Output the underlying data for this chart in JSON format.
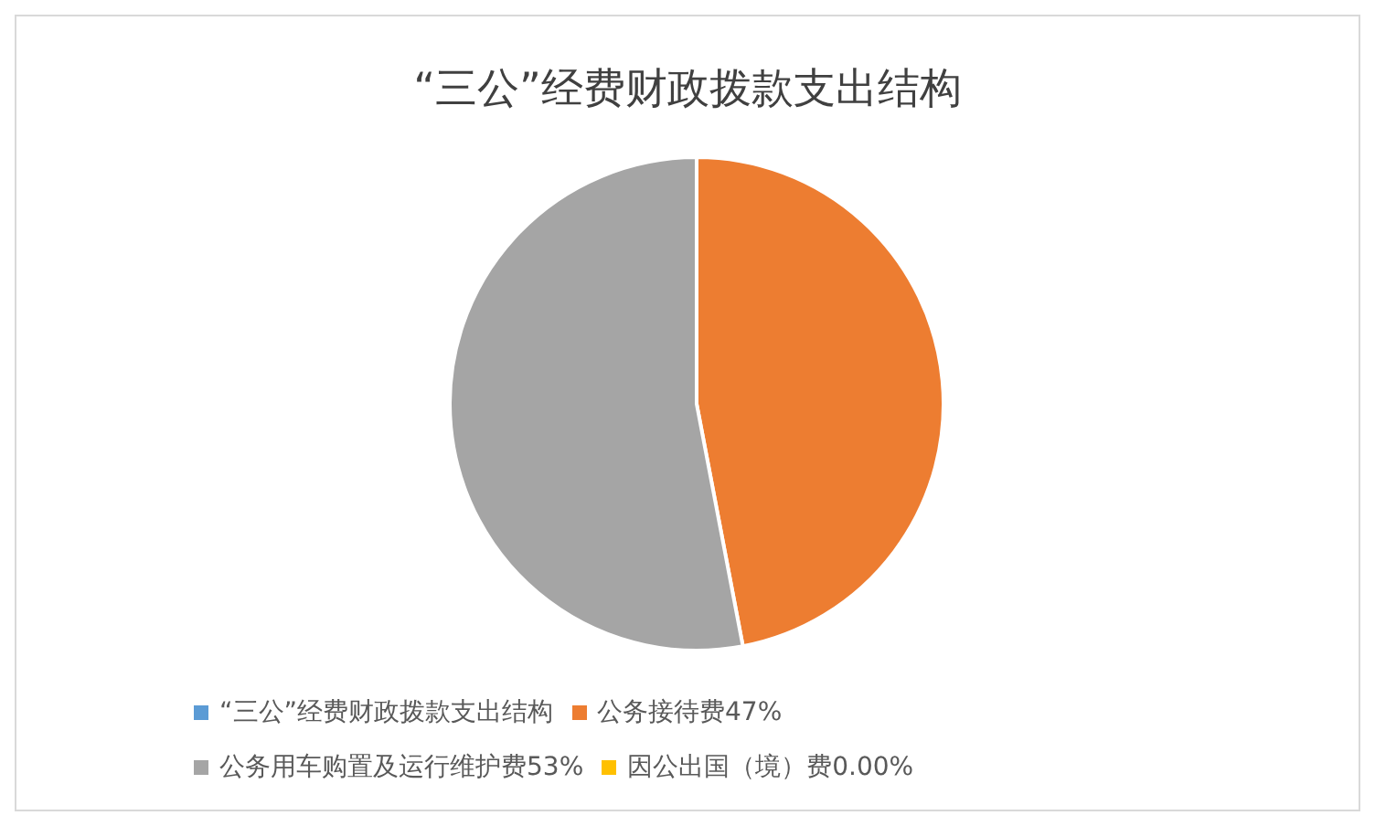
{
  "chart_data": {
    "type": "pie",
    "title": "“三公”经费财政拨款支出结构",
    "categories": [
      "“三公”经费财政拨款支出结构",
      "公务接待费47%",
      "公务用车购置及运行维护费53%",
      "因公出国（境）费0.00%"
    ],
    "values": [
      0,
      47,
      53,
      0
    ],
    "colors": [
      "#5b9bd5",
      "#ed7d31",
      "#a5a5a5",
      "#ffc000"
    ],
    "legend": "bottom"
  }
}
